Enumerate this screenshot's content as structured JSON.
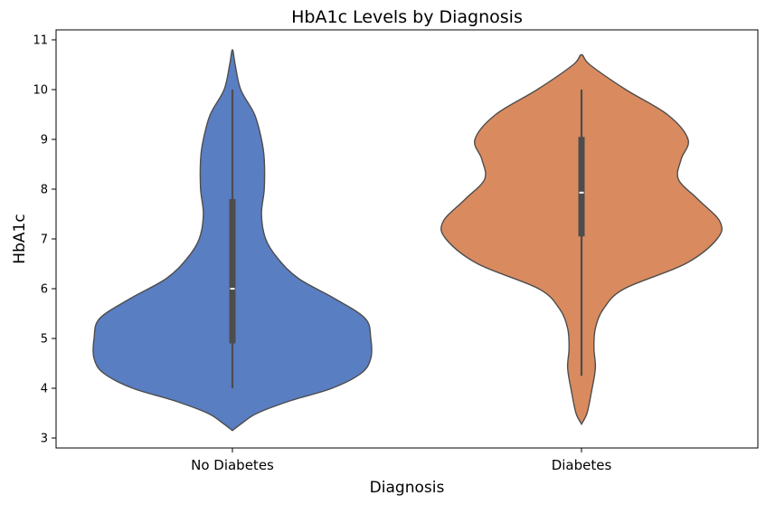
{
  "chart_data": {
    "type": "violin",
    "title": "HbA1c Levels by Diagnosis",
    "xlabel": "Diagnosis",
    "ylabel": "HbA1c",
    "categories": [
      "No Diabetes",
      "Diabetes"
    ],
    "ylim": [
      2.8,
      11.2
    ],
    "yticks": [
      3,
      4,
      5,
      6,
      7,
      8,
      9,
      10,
      11
    ],
    "grid": false,
    "legend": "none",
    "colors": [
      "#5a7ec2",
      "#d98b5f"
    ],
    "edge_color": "#4d4d4d",
    "series": [
      {
        "category": "No Diabetes",
        "whisker": [
          4.0,
          10.0
        ],
        "iqr": [
          4.9,
          7.8
        ],
        "median": 6.0,
        "density": [
          [
            3.15,
            0.0
          ],
          [
            3.3,
            0.07
          ],
          [
            3.5,
            0.18
          ],
          [
            3.75,
            0.42
          ],
          [
            4.0,
            0.72
          ],
          [
            4.3,
            0.93
          ],
          [
            4.6,
            1.0
          ],
          [
            5.0,
            1.0
          ],
          [
            5.4,
            0.96
          ],
          [
            5.8,
            0.74
          ],
          [
            6.2,
            0.48
          ],
          [
            6.6,
            0.33
          ],
          [
            7.0,
            0.24
          ],
          [
            7.5,
            0.21
          ],
          [
            8.0,
            0.23
          ],
          [
            8.6,
            0.23
          ],
          [
            9.0,
            0.21
          ],
          [
            9.5,
            0.16
          ],
          [
            10.0,
            0.06
          ],
          [
            10.5,
            0.02
          ],
          [
            10.8,
            0.0
          ]
        ]
      },
      {
        "category": "Diabetes",
        "whisker": [
          4.25,
          10.0
        ],
        "iqr": [
          7.05,
          9.05
        ],
        "median": 7.93,
        "density": [
          [
            3.28,
            0.0
          ],
          [
            3.5,
            0.04
          ],
          [
            3.9,
            0.07
          ],
          [
            4.4,
            0.1
          ],
          [
            4.8,
            0.09
          ],
          [
            5.2,
            0.1
          ],
          [
            5.6,
            0.16
          ],
          [
            6.0,
            0.31
          ],
          [
            6.5,
            0.75
          ],
          [
            7.0,
            0.98
          ],
          [
            7.35,
            1.0
          ],
          [
            7.8,
            0.84
          ],
          [
            8.2,
            0.7
          ],
          [
            8.6,
            0.72
          ],
          [
            9.0,
            0.77
          ],
          [
            9.5,
            0.62
          ],
          [
            10.0,
            0.32
          ],
          [
            10.5,
            0.06
          ],
          [
            10.7,
            0.0
          ]
        ]
      }
    ]
  }
}
